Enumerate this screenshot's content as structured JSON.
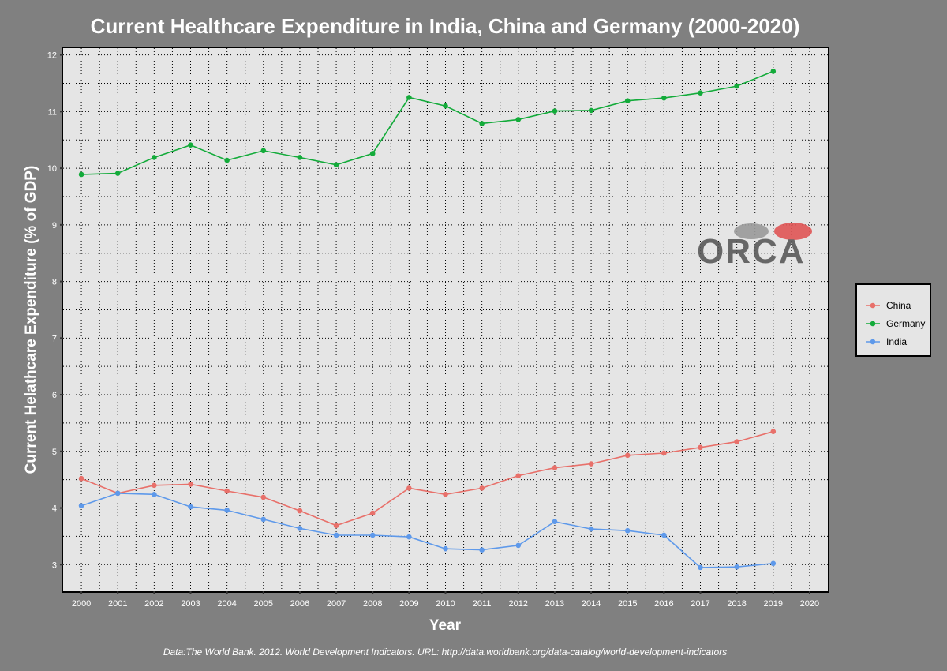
{
  "chart_data": {
    "type": "line",
    "title": "Current Healthcare Expenditure in India, China and Germany (2000-2020)",
    "xlabel": "Year",
    "ylabel": "Current Helathcare Expenditure (% of GDP)",
    "caption": "Data:The World Bank. 2012. World Development Indicators. URL: http://data.worldbank.org/data-catalog/world-development-indicators",
    "x_ticks": [
      "2000",
      "2001",
      "2002",
      "2003",
      "2004",
      "2005",
      "2006",
      "2007",
      "2008",
      "2009",
      "2010",
      "2011",
      "2012",
      "2013",
      "2014",
      "2015",
      "2016",
      "2017",
      "2018",
      "2019",
      "2020"
    ],
    "y_ticks": [
      3,
      4,
      5,
      6,
      7,
      8,
      9,
      10,
      11,
      12
    ],
    "xlim": [
      1999.5,
      2020.5
    ],
    "ylim": [
      2.53,
      12.12
    ],
    "grid": true,
    "legend_position": "right",
    "x": [
      2000,
      2001,
      2002,
      2003,
      2004,
      2005,
      2006,
      2007,
      2008,
      2009,
      2010,
      2011,
      2012,
      2013,
      2014,
      2015,
      2016,
      2017,
      2018,
      2019
    ],
    "series": [
      {
        "name": "China",
        "color": "#e8706a",
        "values": [
          4.52,
          4.26,
          4.4,
          4.42,
          4.3,
          4.19,
          3.95,
          3.69,
          3.91,
          4.35,
          4.24,
          4.35,
          4.57,
          4.71,
          4.78,
          4.93,
          4.97,
          5.07,
          5.17,
          5.35
        ]
      },
      {
        "name": "Germany",
        "color": "#13ab3a",
        "values": [
          9.89,
          9.91,
          10.19,
          10.41,
          10.14,
          10.31,
          10.19,
          10.06,
          10.26,
          11.25,
          11.1,
          10.79,
          10.86,
          11.01,
          11.02,
          11.19,
          11.24,
          11.33,
          11.45,
          11.71
        ]
      },
      {
        "name": "India",
        "color": "#5e99ea",
        "values": [
          4.04,
          4.26,
          4.24,
          4.02,
          3.96,
          3.8,
          3.64,
          3.52,
          3.52,
          3.49,
          3.28,
          3.26,
          3.34,
          3.76,
          3.63,
          3.6,
          3.52,
          2.95,
          2.96,
          3.02
        ]
      }
    ]
  },
  "watermark": {
    "text": "ORCA"
  }
}
